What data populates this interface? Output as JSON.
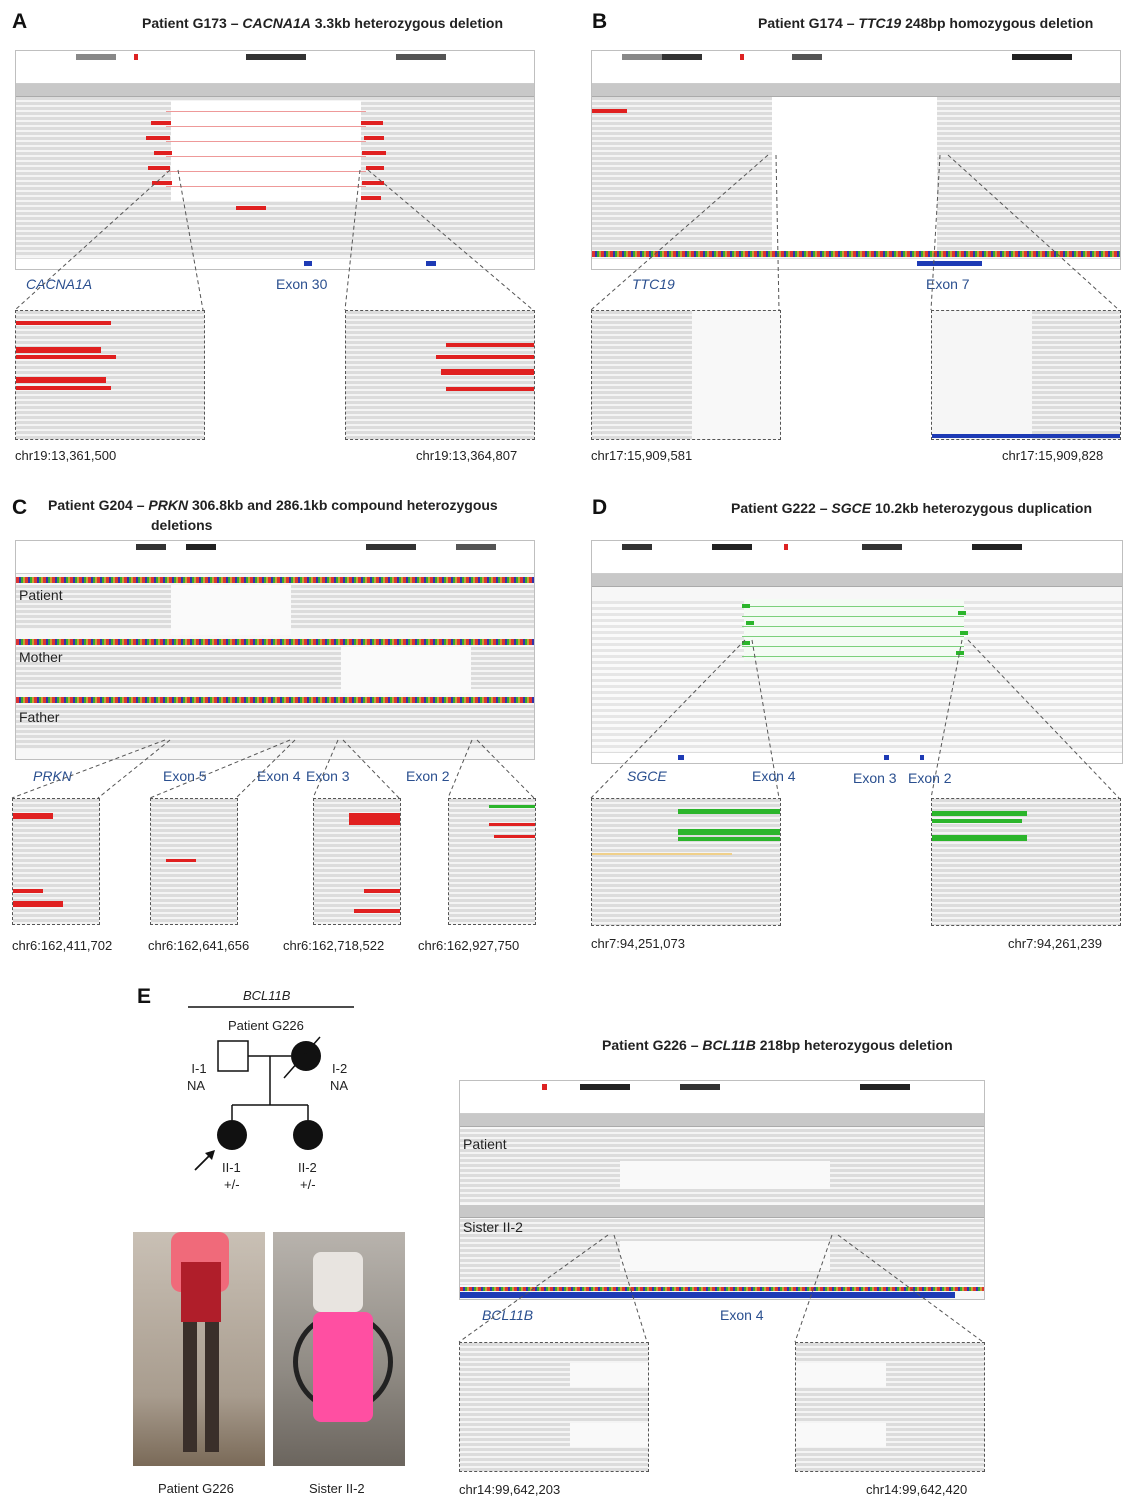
{
  "panels": {
    "A": {
      "label": "A",
      "title_pre": "Patient G173 –",
      "title_gene": "CACNA1A",
      "title_post": "3.3kb heterozygous deletion",
      "gene": "CACNA1A",
      "exon": "Exon 30",
      "coord_left": "chr19:13,361,500",
      "coord_right": "chr19:13,364,807",
      "read_color": "#e02020"
    },
    "B": {
      "label": "B",
      "title_pre": "Patient G174 –",
      "title_gene": "TTC19",
      "title_post": "248bp homozygous deletion",
      "gene": "TTC19",
      "exon": "Exon 7",
      "coord_left": "chr17:15,909,581",
      "coord_right": "chr17:15,909,828"
    },
    "C": {
      "label": "C",
      "title_pre": "Patient G204 –",
      "title_gene": "PRKN",
      "title_post": "306.8kb and 286.1kb compound heterozygous",
      "title_line2": "deletions",
      "gene": "PRKN",
      "exons": [
        "Exon 5",
        "Exon 4",
        "Exon 3",
        "Exon 2"
      ],
      "tracks": [
        "Patient",
        "Mother",
        "Father"
      ],
      "coords": [
        "chr6:162,411,702",
        "chr6:162,641,656",
        "chr6:162,718,522",
        "chr6:162,927,750"
      ]
    },
    "D": {
      "label": "D",
      "title_pre": "Patient G222 –",
      "title_gene": "SGCE",
      "title_post": "10.2kb heterozygous duplication",
      "gene": "SGCE",
      "exons": [
        "Exon 4",
        "Exon 3",
        "Exon 2"
      ],
      "coord_left": "chr7:94,251,073",
      "coord_right": "chr7:94,261,239",
      "read_color": "#2bb52b"
    },
    "E": {
      "label": "E",
      "pedigree_gene": "BCL11B",
      "pedigree_family": "Patient G226",
      "members": {
        "I1": {
          "id": "I-1",
          "status": "NA"
        },
        "I2": {
          "id": "I-2",
          "status": "NA"
        },
        "II1": {
          "id": "II-1",
          "status": "+/-"
        },
        "II2": {
          "id": "II-2",
          "status": "+/-"
        }
      },
      "photo_left_caption": "Patient G226",
      "photo_right_caption": "Sister II-2",
      "title_pre": "Patient G226 –",
      "title_gene": "BCL11B",
      "title_post": "218bp heterozygous deletion",
      "tracks": [
        "Patient",
        "Sister II-2"
      ],
      "gene": "BCL11B",
      "exon": "Exon 4",
      "coord_left": "chr14:99,642,203",
      "coord_right": "chr14:99,642,420"
    }
  }
}
